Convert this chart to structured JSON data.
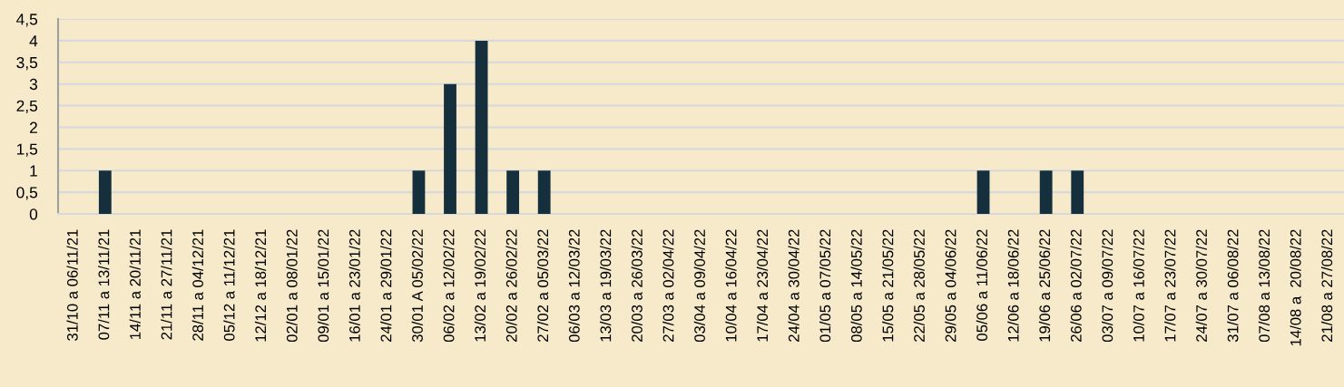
{
  "chart_data": {
    "type": "bar",
    "categories": [
      "31/10 a 06/11/21",
      "07/11 a 13/11/21",
      "14/11 a 20/11/21",
      "21/11 a 27/11/21",
      "28/11 a 04/12/21",
      "05/12 a 11/12/21",
      "12/12 a 18/12/21",
      "02/01 a 08/01/22",
      "09/01 a 15/01/22",
      "16/01 a 23/01/22",
      "24/01 a 29/01/22",
      "30/01 A 05/02/22",
      "06/02 a 12/02/22",
      "13/02 a 19/02/22",
      "20/02 a 26/02/22",
      "27/02 a 05/03/22",
      "06/03 a 12/03/22",
      "13/03 a 19/03/22",
      "20/03 a 26/03/22",
      "27/03 a 02/04/22",
      "03/04 a 09/04/22",
      "10/04 a 16/04/22",
      "17/04 a 23/04/22",
      "24/04 a 30/04/22",
      "01/05 a 07/05/22",
      "08/05 a 14/05/22",
      "15/05 a 21/05/22",
      "22/05 a 28/05/22",
      "29/05 a 04/06/22",
      "05/06 a 11/06/22",
      "12/06 a 18/06/22",
      "19/06 a 25/06/22",
      "26/06 a 02/07/22",
      "03/07 a 09/07/22",
      "10/07 a 16/07/22",
      "17/07 a 23/07/22",
      "24/07 a 30/07/22",
      "31/07 a 06/08/22",
      "07/08 a 13/08/22",
      "14/08 a  20/08/22",
      "21/08 a 27/08/22"
    ],
    "values": [
      0,
      1,
      0,
      0,
      0,
      0,
      0,
      0,
      0,
      0,
      0,
      1,
      3,
      4,
      1,
      1,
      0,
      0,
      0,
      0,
      0,
      0,
      0,
      0,
      0,
      0,
      0,
      0,
      0,
      1,
      0,
      1,
      1,
      0,
      0,
      0,
      0,
      0,
      0,
      0,
      0
    ],
    "color": "#15303c",
    "ylim": [
      0,
      4.5
    ],
    "yticks": [
      0,
      {
        "value": 0.5,
        "label": "0,5"
      },
      1,
      {
        "value": 1.5,
        "label": "1,5"
      },
      2,
      {
        "value": 2.5,
        "label": "2,5"
      },
      3,
      {
        "value": 3.5,
        "label": "3,5"
      },
      4,
      {
        "value": 4.5,
        "label": "4,5"
      }
    ],
    "grid": "y",
    "legend": false
  }
}
